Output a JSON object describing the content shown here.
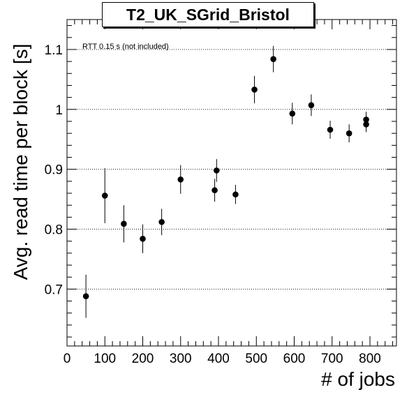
{
  "chart_data": {
    "type": "scatter",
    "title": "T2_UK_SGrid_Bristol",
    "annotation": "RTT 0.15 s (not included)",
    "xlabel": "# of jobs",
    "ylabel": "Avg. read time per block [s]",
    "xlim": [
      0,
      870
    ],
    "ylim": [
      0.605,
      1.15
    ],
    "x_ticks": [
      0,
      100,
      200,
      300,
      400,
      500,
      600,
      700,
      800
    ],
    "x_tick_labels": [
      "0",
      "100",
      "200",
      "300",
      "400",
      "500",
      "600",
      "700",
      "800"
    ],
    "y_ticks": [
      0.7,
      0.8,
      0.9,
      1.0,
      1.1
    ],
    "y_tick_labels": [
      "0.7",
      "0.8",
      "0.9",
      "1",
      "1.1"
    ],
    "grid": "horizontal-dotted",
    "points": [
      {
        "x": 50,
        "y": 0.688,
        "err": 0.036
      },
      {
        "x": 100,
        "y": 0.856,
        "err": 0.046
      },
      {
        "x": 150,
        "y": 0.809,
        "err": 0.031
      },
      {
        "x": 200,
        "y": 0.784,
        "err": 0.024
      },
      {
        "x": 250,
        "y": 0.812,
        "err": 0.022
      },
      {
        "x": 300,
        "y": 0.883,
        "err": 0.024
      },
      {
        "x": 390,
        "y": 0.865,
        "err": 0.019
      },
      {
        "x": 395,
        "y": 0.898,
        "err": 0.019
      },
      {
        "x": 445,
        "y": 0.858,
        "err": 0.016
      },
      {
        "x": 495,
        "y": 1.033,
        "err": 0.023
      },
      {
        "x": 545,
        "y": 1.084,
        "err": 0.022
      },
      {
        "x": 595,
        "y": 0.993,
        "err": 0.018
      },
      {
        "x": 645,
        "y": 1.007,
        "err": 0.018
      },
      {
        "x": 695,
        "y": 0.966,
        "err": 0.015
      },
      {
        "x": 745,
        "y": 0.96,
        "err": 0.015
      },
      {
        "x": 790,
        "y": 0.983,
        "err": 0.013
      },
      {
        "x": 790,
        "y": 0.975,
        "err": 0.013
      }
    ]
  }
}
